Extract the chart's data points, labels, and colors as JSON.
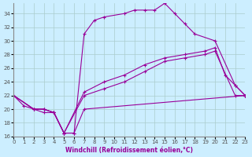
{
  "xlabel": "Windchill (Refroidissement éolien,°C)",
  "bg_color": "#cceeff",
  "grid_color": "#aacccc",
  "line_color": "#990099",
  "xmin": 0,
  "xmax": 23,
  "ymin": 16,
  "ymax": 35.5,
  "yticks": [
    16,
    18,
    20,
    22,
    24,
    26,
    28,
    30,
    32,
    34
  ],
  "xticks": [
    0,
    1,
    2,
    3,
    4,
    5,
    6,
    7,
    8,
    9,
    10,
    11,
    12,
    13,
    14,
    15,
    16,
    17,
    18,
    19,
    20,
    21,
    22,
    23
  ],
  "series": [
    {
      "x": [
        0,
        2,
        3,
        4,
        5,
        6,
        7,
        8,
        9,
        11,
        12,
        13,
        14,
        15,
        16,
        17,
        18,
        20,
        22,
        23
      ],
      "y": [
        22,
        20,
        20,
        19.5,
        16.5,
        16.5,
        31,
        33,
        33.5,
        34,
        34.5,
        34.5,
        34.5,
        35.5,
        34,
        32.5,
        31,
        30,
        23.5,
        22
      ]
    },
    {
      "x": [
        0,
        2,
        3,
        4,
        5,
        7,
        9,
        11,
        13,
        15,
        17,
        19,
        20,
        21,
        22,
        23
      ],
      "y": [
        22,
        20,
        20,
        19.5,
        16.5,
        22.5,
        24,
        25,
        26.5,
        27.5,
        28,
        28.5,
        29,
        25,
        23.5,
        22
      ]
    },
    {
      "x": [
        0,
        2,
        3,
        4,
        5,
        7,
        9,
        11,
        13,
        15,
        17,
        19,
        20,
        22,
        23
      ],
      "y": [
        22,
        20,
        20,
        19.5,
        16.5,
        22,
        23,
        24,
        25.5,
        27,
        27.5,
        28,
        28.5,
        22,
        22
      ]
    },
    {
      "x": [
        0,
        1,
        2,
        3,
        4,
        5,
        6,
        7,
        23
      ],
      "y": [
        22,
        20.5,
        20,
        19.5,
        19.5,
        16.5,
        16.5,
        20,
        22
      ]
    }
  ]
}
